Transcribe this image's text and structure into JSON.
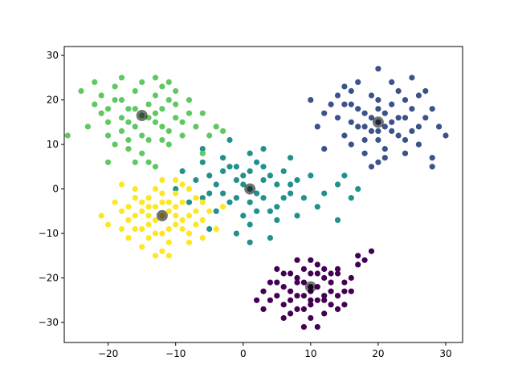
{
  "chart_data": {
    "type": "scatter",
    "title": "",
    "xlabel": "",
    "ylabel": "",
    "xlim": [
      -26.5,
      32.5
    ],
    "ylim": [
      -34.5,
      32.0
    ],
    "xticks": [
      -20,
      -10,
      0,
      10,
      20,
      30
    ],
    "yticks": [
      -30,
      -20,
      -10,
      0,
      10,
      20,
      30
    ],
    "grid": false,
    "legend": "none",
    "series": [
      {
        "color": "#440154",
        "center": [
          10.0,
          -22.0
        ],
        "points": [
          [
            10,
            -22
          ],
          [
            8,
            -20
          ],
          [
            12,
            -24
          ],
          [
            6,
            -26
          ],
          [
            14,
            -18
          ],
          [
            9,
            -27
          ],
          [
            11,
            -17
          ],
          [
            5,
            -21
          ],
          [
            15,
            -23
          ],
          [
            7,
            -19
          ],
          [
            13,
            -26
          ],
          [
            10,
            -29
          ],
          [
            4,
            -25
          ],
          [
            16,
            -20
          ],
          [
            8,
            -24
          ],
          [
            12,
            -20
          ],
          [
            9,
            -18
          ],
          [
            11,
            -25
          ],
          [
            6,
            -22
          ],
          [
            14,
            -24
          ],
          [
            10,
            -19
          ],
          [
            3,
            -27
          ],
          [
            17,
            -17
          ],
          [
            7,
            -28
          ],
          [
            13,
            -21
          ],
          [
            8,
            -16
          ],
          [
            12,
            -28
          ],
          [
            5,
            -18
          ],
          [
            15,
            -26
          ],
          [
            10,
            -25
          ],
          [
            2,
            -25
          ],
          [
            18,
            -16
          ],
          [
            9,
            -31
          ],
          [
            11,
            -31
          ],
          [
            6,
            -29
          ],
          [
            14,
            -19
          ],
          [
            16,
            -23
          ],
          [
            4,
            -21
          ],
          [
            10,
            -16
          ],
          [
            12,
            -18
          ],
          [
            8,
            -27
          ],
          [
            7,
            -23
          ],
          [
            13,
            -23
          ],
          [
            9,
            -21
          ],
          [
            11,
            -22
          ],
          [
            5,
            -24
          ],
          [
            15,
            -21
          ],
          [
            10,
            -26
          ],
          [
            3,
            -23
          ],
          [
            17,
            -15
          ],
          [
            19,
            -14
          ],
          [
            9,
            -24
          ],
          [
            11,
            -19
          ],
          [
            8,
            -21
          ],
          [
            12,
            -25
          ],
          [
            6,
            -19
          ],
          [
            14,
            -27
          ],
          [
            10,
            -23
          ],
          [
            7,
            -25
          ],
          [
            13,
            -19
          ]
        ]
      },
      {
        "color": "#3b528b",
        "center": [
          20.0,
          15.0
        ],
        "points": [
          [
            20,
            15
          ],
          [
            18,
            17
          ],
          [
            22,
            13
          ],
          [
            16,
            19
          ],
          [
            24,
            11
          ],
          [
            19,
            21
          ],
          [
            21,
            9
          ],
          [
            15,
            12
          ],
          [
            25,
            18
          ],
          [
            17,
            14
          ],
          [
            23,
            16
          ],
          [
            20,
            20
          ],
          [
            14,
            16
          ],
          [
            26,
            14
          ],
          [
            18,
            11
          ],
          [
            22,
            19
          ],
          [
            19,
            13
          ],
          [
            21,
            17
          ],
          [
            16,
            22
          ],
          [
            24,
            8
          ],
          [
            20,
            6
          ],
          [
            13,
            19
          ],
          [
            27,
            16
          ],
          [
            17,
            24
          ],
          [
            23,
            22
          ],
          [
            18,
            8
          ],
          [
            22,
            24
          ],
          [
            15,
            23
          ],
          [
            25,
            25
          ],
          [
            20,
            27
          ],
          [
            11,
            14
          ],
          [
            29,
            14
          ],
          [
            12,
            17
          ],
          [
            28,
            18
          ],
          [
            19,
            5
          ],
          [
            21,
            7
          ],
          [
            16,
            10
          ],
          [
            24,
            20
          ],
          [
            10,
            20
          ],
          [
            30,
            12
          ],
          [
            26,
            10
          ],
          [
            17,
            18
          ],
          [
            23,
            12
          ],
          [
            20,
            18
          ],
          [
            18,
            14
          ],
          [
            22,
            15
          ],
          [
            15,
            19
          ],
          [
            25,
            13
          ],
          [
            20,
            11
          ],
          [
            28,
            5
          ],
          [
            28,
            7
          ],
          [
            14,
            21
          ],
          [
            26,
            21
          ],
          [
            19,
            16
          ],
          [
            21,
            14
          ],
          [
            16,
            15
          ],
          [
            24,
            16
          ],
          [
            20,
            13
          ],
          [
            12,
            9
          ],
          [
            27,
            22
          ]
        ]
      },
      {
        "color": "#21918c",
        "center": [
          1.0,
          0.0
        ],
        "points": [
          [
            1,
            0
          ],
          [
            -1,
            2
          ],
          [
            3,
            -2
          ],
          [
            -3,
            4
          ],
          [
            5,
            -4
          ],
          [
            0,
            -6
          ],
          [
            2,
            6
          ],
          [
            -5,
            -1
          ],
          [
            7,
            1
          ],
          [
            -2,
            -3
          ],
          [
            4,
            3
          ],
          [
            1,
            -8
          ],
          [
            -7,
            2
          ],
          [
            9,
            -2
          ],
          [
            -1,
            5
          ],
          [
            3,
            5
          ],
          [
            0,
            3
          ],
          [
            2,
            -5
          ],
          [
            -4,
            -5
          ],
          [
            6,
            4
          ],
          [
            1,
            8
          ],
          [
            -8,
            -3
          ],
          [
            10,
            3
          ],
          [
            -3,
            7
          ],
          [
            5,
            -7
          ],
          [
            -1,
            -10
          ],
          [
            3,
            9
          ],
          [
            -6,
            6
          ],
          [
            8,
            -6
          ],
          [
            1,
            -12
          ],
          [
            -10,
            0
          ],
          [
            12,
            -1
          ],
          [
            -2,
            11
          ],
          [
            4,
            -11
          ],
          [
            -5,
            -9
          ],
          [
            7,
            7
          ],
          [
            -9,
            4
          ],
          [
            11,
            -4
          ],
          [
            0,
            1
          ],
          [
            2,
            -1
          ],
          [
            -1,
            -2
          ],
          [
            3,
            2
          ],
          [
            -3,
            -1
          ],
          [
            5,
            1
          ],
          [
            1,
            4
          ],
          [
            -4,
            1
          ],
          [
            6,
            -2
          ],
          [
            -2,
            5
          ],
          [
            4,
            -5
          ],
          [
            1,
            -3
          ],
          [
            -6,
            -2
          ],
          [
            8,
            2
          ],
          [
            -5,
            3
          ],
          [
            7,
            -1
          ],
          [
            14,
            1
          ],
          [
            15,
            3
          ],
          [
            16,
            -2
          ],
          [
            17,
            0
          ],
          [
            14,
            -7
          ],
          [
            -6,
            9
          ]
        ]
      },
      {
        "color": "#5ec962",
        "center": [
          -15.0,
          16.5
        ],
        "points": [
          [
            -15,
            16.5
          ],
          [
            -17,
            18
          ],
          [
            -13,
            15
          ],
          [
            -19,
            20
          ],
          [
            -11,
            13
          ],
          [
            -16,
            22
          ],
          [
            -14,
            11
          ],
          [
            -20,
            15
          ],
          [
            -10,
            19
          ],
          [
            -18,
            13
          ],
          [
            -12,
            18
          ],
          [
            -15,
            24
          ],
          [
            -21,
            17
          ],
          [
            -9,
            15
          ],
          [
            -17,
            11
          ],
          [
            -13,
            21
          ],
          [
            -16,
            14
          ],
          [
            -14,
            19
          ],
          [
            -19,
            23
          ],
          [
            -11,
            10
          ],
          [
            -15,
            8
          ],
          [
            -22,
            19
          ],
          [
            -8,
            17
          ],
          [
            -18,
            25
          ],
          [
            -12,
            23
          ],
          [
            -17,
            9
          ],
          [
            -13,
            25
          ],
          [
            -20,
            12
          ],
          [
            -10,
            22
          ],
          [
            -15,
            12
          ],
          [
            -23,
            14
          ],
          [
            -7,
            14
          ],
          [
            -21,
            21
          ],
          [
            -9,
            12
          ],
          [
            -16,
            6
          ],
          [
            -14,
            6
          ],
          [
            -19,
            10
          ],
          [
            -11,
            20
          ],
          [
            -24,
            22
          ],
          [
            -6,
            17
          ],
          [
            -12,
            14
          ],
          [
            -18,
            16
          ],
          [
            -14,
            16
          ],
          [
            -16,
            18
          ],
          [
            -13,
            17
          ],
          [
            -17,
            15
          ],
          [
            -12,
            11
          ],
          [
            -18,
            20
          ],
          [
            -10,
            16
          ],
          [
            -20,
            18
          ],
          [
            -26,
            12
          ],
          [
            -20,
            6
          ],
          [
            -5,
            12
          ],
          [
            -4,
            14
          ],
          [
            -6,
            8
          ],
          [
            -13,
            5
          ],
          [
            -3,
            13
          ],
          [
            -8,
            20
          ],
          [
            -22,
            24
          ],
          [
            -11,
            24
          ]
        ]
      },
      {
        "color": "#fde725",
        "center": [
          -12.0,
          -6.0
        ],
        "points": [
          [
            -12,
            -6
          ],
          [
            -14,
            -4
          ],
          [
            -10,
            -8
          ],
          [
            -16,
            -2
          ],
          [
            -8,
            -10
          ],
          [
            -13,
            0
          ],
          [
            -11,
            -12
          ],
          [
            -17,
            -7
          ],
          [
            -7,
            -5
          ],
          [
            -15,
            -9
          ],
          [
            -9,
            -3
          ],
          [
            -12,
            -1
          ],
          [
            -18,
            -5
          ],
          [
            -6,
            -7
          ],
          [
            -14,
            -11
          ],
          [
            -10,
            -1
          ],
          [
            -13,
            -7
          ],
          [
            -11,
            -5
          ],
          [
            -16,
            0
          ],
          [
            -8,
            -12
          ],
          [
            -12,
            -14
          ],
          [
            -19,
            -3
          ],
          [
            -5,
            -5
          ],
          [
            -15,
            -13
          ],
          [
            -9,
            1
          ],
          [
            -14,
            -8
          ],
          [
            -10,
            2
          ],
          [
            -17,
            -11
          ],
          [
            -7,
            -2
          ],
          [
            -12,
            -10
          ],
          [
            -20,
            -8
          ],
          [
            -4,
            -9
          ],
          [
            -18,
            1
          ],
          [
            -6,
            -11
          ],
          [
            -13,
            -15
          ],
          [
            -11,
            -15
          ],
          [
            -16,
            -9
          ],
          [
            -8,
            0
          ],
          [
            -21,
            -6
          ],
          [
            -3,
            -4
          ],
          [
            -9,
            -9
          ],
          [
            -15,
            -5
          ],
          [
            -11,
            -3
          ],
          [
            -13,
            -4
          ],
          [
            -10,
            -6
          ],
          [
            -14,
            -6
          ],
          [
            -9,
            -7
          ],
          [
            -15,
            -3
          ],
          [
            -7,
            -8
          ],
          [
            -17,
            -4
          ],
          [
            -12,
            2
          ],
          [
            -12,
            -3
          ],
          [
            -11,
            -9
          ],
          [
            -13,
            -10
          ],
          [
            -10,
            -4
          ],
          [
            -14,
            -2
          ],
          [
            -8,
            -6
          ],
          [
            -16,
            -6
          ],
          [
            -6,
            -3
          ],
          [
            -18,
            -9
          ]
        ]
      }
    ],
    "centroids": {
      "color": "#000000",
      "opacity": 0.55,
      "points": [
        [
          10.0,
          -22.0
        ],
        [
          20.0,
          15.0
        ],
        [
          1.0,
          0.0
        ],
        [
          -15.0,
          16.5
        ],
        [
          -12.0,
          -6.0
        ]
      ]
    }
  }
}
